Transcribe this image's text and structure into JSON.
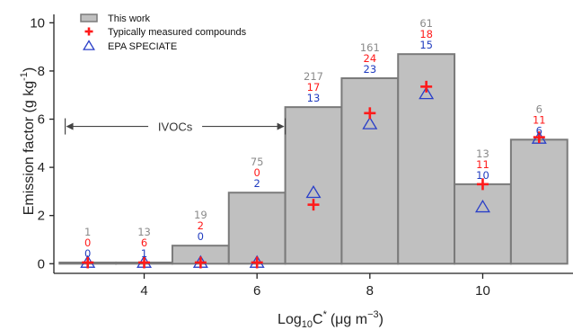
{
  "chart_data": {
    "type": "bar",
    "xlabel_main": "Log",
    "xlabel_sub": "10",
    "xlabel_c": "C",
    "xlabel_star": "*",
    "xlabel_units": "(μg m",
    "xlabel_exp": "−3",
    "xlabel_close": ")",
    "ylabel_main": "Emission factor (g kg",
    "ylabel_exp": "-1",
    "ylabel_close": ")",
    "xlim": [
      2.4,
      11.6
    ],
    "ylim": [
      -0.4,
      10.2
    ],
    "x_ticks": [
      4,
      6,
      8,
      10
    ],
    "y_ticks": [
      0,
      2,
      4,
      6,
      8,
      10
    ],
    "x_tick_labels": [
      "4",
      "6",
      "8",
      "10"
    ],
    "y_tick_labels": [
      "0",
      "2",
      "4",
      "6",
      "8",
      "10"
    ],
    "bins": [
      3,
      4,
      5,
      6,
      7,
      8,
      9,
      10,
      11
    ],
    "series": [
      {
        "name": "This work",
        "marker": "bar",
        "values": [
          0.05,
          0.05,
          0.75,
          2.95,
          6.5,
          7.7,
          8.7,
          3.3,
          5.15
        ]
      },
      {
        "name": "Typically measured compounds",
        "marker": "plus",
        "values": [
          0.05,
          0.05,
          0.05,
          0.05,
          2.45,
          6.25,
          7.35,
          3.3,
          5.25
        ]
      },
      {
        "name": "EPA SPECIATE",
        "marker": "triangle",
        "values": [
          0.05,
          0.05,
          0.05,
          0.05,
          2.95,
          5.8,
          7.05,
          2.35,
          5.2
        ]
      }
    ],
    "count_labels": {
      "gray": [
        "1",
        "13",
        "19",
        "75",
        "217",
        "161",
        "61",
        "13",
        "6"
      ],
      "red": [
        "0",
        "6",
        "2",
        "0",
        "17",
        "24",
        "18",
        "11",
        "11"
      ],
      "blue": [
        "0",
        "1",
        "0",
        "2",
        "13",
        "23",
        "15",
        "10",
        "6"
      ]
    },
    "annotation": {
      "text": "IVOCs",
      "x_start": 2.6,
      "x_end": 6.5,
      "y": 5.7
    },
    "legend_position": "top-left",
    "grid": false
  },
  "colors": {
    "bar_fill": "#c0c0c0",
    "bar_stroke": "#7a7a7a",
    "plus": "#ff1a1a",
    "triangle": "#2a3fc8",
    "count_gray": "#8a8a8a",
    "count_red": "#ff1a1a",
    "count_blue": "#1f3bbf",
    "axis": "#222222"
  }
}
